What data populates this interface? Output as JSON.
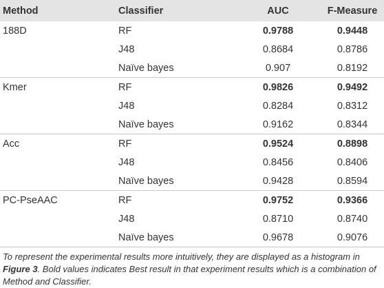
{
  "table": {
    "header": [
      "Method",
      "Classifier",
      "AUC",
      "F-Measure"
    ],
    "groups": [
      {
        "method": "188D",
        "rows": [
          {
            "classifier": "RF",
            "auc": "0.9788",
            "f_measure": "0.9448",
            "bold": true
          },
          {
            "classifier": "J48",
            "auc": "0.8684",
            "f_measure": "0.8786",
            "bold": false
          },
          {
            "classifier": "Naïve bayes",
            "auc": "0.907",
            "f_measure": "0.8192",
            "bold": false
          }
        ]
      },
      {
        "method": "Kmer",
        "rows": [
          {
            "classifier": "RF",
            "auc": "0.9826",
            "f_measure": "0.9492",
            "bold": true
          },
          {
            "classifier": "J48",
            "auc": "0.8284",
            "f_measure": "0.8312",
            "bold": false
          },
          {
            "classifier": "Naïve bayes",
            "auc": "0.9162",
            "f_measure": "0.8344",
            "bold": false
          }
        ]
      },
      {
        "method": "Acc",
        "rows": [
          {
            "classifier": "RF",
            "auc": "0.9524",
            "f_measure": "0.8898",
            "bold": true
          },
          {
            "classifier": "J48",
            "auc": "0.8456",
            "f_measure": "0.8406",
            "bold": false
          },
          {
            "classifier": "Naïve bayes",
            "auc": "0.9428",
            "f_measure": "0.8594",
            "bold": false
          }
        ]
      },
      {
        "method": "PC-PseAAC",
        "rows": [
          {
            "classifier": "RF",
            "auc": "0.9752",
            "f_measure": "0.9366",
            "bold": true
          },
          {
            "classifier": "J48",
            "auc": "0.8710",
            "f_measure": "0.8740",
            "bold": false
          },
          {
            "classifier": "Naïve bayes",
            "auc": "0.9678",
            "f_measure": "0.9076",
            "bold": false
          }
        ]
      }
    ],
    "note": [
      "To represent the experimental results more intuitively, they are displayed as a histogram in ",
      "Figure 3",
      ". Bold values indicates Best result in that experiment results which is a combination of Method and Classifier."
    ]
  }
}
